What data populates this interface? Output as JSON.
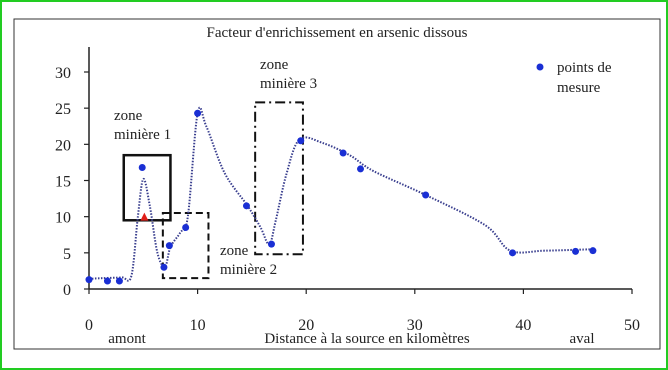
{
  "chart_data": {
    "type": "line",
    "title": "Facteur d'enrichissement en arsenic dissous",
    "xlabel": "Distance à la source en kilomètres",
    "ylabel": "",
    "xlim": [
      0,
      50
    ],
    "ylim": [
      0,
      30
    ],
    "x_ticks": [
      "0",
      "10",
      "20",
      "30",
      "40",
      "50"
    ],
    "y_ticks": [
      "0",
      "5",
      "10",
      "15",
      "20",
      "25",
      "30"
    ],
    "x_end_labels": {
      "left": "amont",
      "right": "aval"
    },
    "grid": false,
    "legend": {
      "position": "top-right",
      "lines": [
        "points de",
        "mesure"
      ]
    },
    "points": [
      {
        "x": 0,
        "y": 1.3
      },
      {
        "x": 1.7,
        "y": 1.1
      },
      {
        "x": 2.8,
        "y": 1.1
      },
      {
        "x": 4.9,
        "y": 16.8
      },
      {
        "x": 6.9,
        "y": 3.0
      },
      {
        "x": 7.4,
        "y": 6.0
      },
      {
        "x": 8.9,
        "y": 8.5
      },
      {
        "x": 10.0,
        "y": 24.3
      },
      {
        "x": 14.5,
        "y": 11.5
      },
      {
        "x": 16.8,
        "y": 6.2
      },
      {
        "x": 19.5,
        "y": 20.5
      },
      {
        "x": 23.4,
        "y": 18.8
      },
      {
        "x": 25.0,
        "y": 16.6
      },
      {
        "x": 31.0,
        "y": 13.0
      },
      {
        "x": 39.0,
        "y": 5.0
      },
      {
        "x": 44.8,
        "y": 5.2
      },
      {
        "x": 46.4,
        "y": 5.3
      }
    ],
    "curve": [
      [
        0,
        1.4
      ],
      [
        1.2,
        1.5
      ],
      [
        3,
        1.6
      ],
      [
        3.9,
        1.8
      ],
      [
        4.5,
        10
      ],
      [
        5.0,
        15.2
      ],
      [
        5.6,
        11.5
      ],
      [
        6.3,
        5
      ],
      [
        7.0,
        3.1
      ],
      [
        7.5,
        5.8
      ],
      [
        8.4,
        7.8
      ],
      [
        9.1,
        10
      ],
      [
        10.0,
        24.3
      ],
      [
        10.8,
        22.5
      ],
      [
        12.5,
        16
      ],
      [
        14.6,
        11.5
      ],
      [
        15.8,
        8.5
      ],
      [
        16.6,
        6.2
      ],
      [
        17.2,
        9.5
      ],
      [
        18.2,
        16
      ],
      [
        19.4,
        20.7
      ],
      [
        21.5,
        20.2
      ],
      [
        24,
        18.5
      ],
      [
        26.2,
        16.3
      ],
      [
        31,
        13
      ],
      [
        36.5,
        8.8
      ],
      [
        38.8,
        5.3
      ],
      [
        42,
        5.3
      ],
      [
        46.4,
        5.5
      ]
    ],
    "marker_red": {
      "x": 5.1,
      "y": 10.0
    },
    "colors": {
      "points": "#1a2fd4",
      "curve": "#3a3f8f",
      "red_marker": "#e0201a",
      "border": "#22cc22"
    },
    "annotations": [
      {
        "lines": [
          "zone",
          "minière 1"
        ],
        "box": {
          "x0": 3.2,
          "x1": 7.5,
          "y0": 9.5,
          "y1": 18.5
        },
        "style": "solid"
      },
      {
        "lines": [
          "zone",
          "minière 2"
        ],
        "box": {
          "x0": 6.8,
          "x1": 11,
          "y0": 1.5,
          "y1": 10.5
        },
        "style": "dashed"
      },
      {
        "lines": [
          "zone",
          "minière 3"
        ],
        "box": {
          "x0": 15.3,
          "x1": 19.7,
          "y0": 4.8,
          "y1": 25.8
        },
        "style": "dashdot"
      }
    ]
  }
}
